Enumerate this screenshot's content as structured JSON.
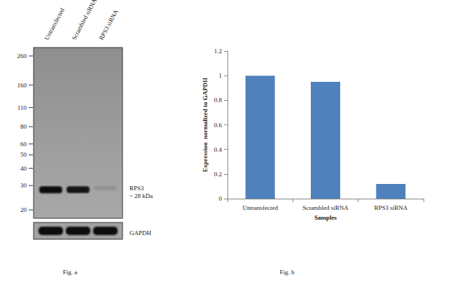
{
  "figure_a": {
    "caption": "Fig. a",
    "lanes": [
      "Untransfected",
      "Scrambled siRNA",
      "RPS3 siRNA"
    ],
    "markers": [
      260,
      160,
      110,
      80,
      60,
      50,
      40,
      30,
      20
    ],
    "bands": [
      {
        "name": "RPS3",
        "size_label": "~ 28 kDa",
        "kda": 28
      }
    ],
    "loading_control": "GAPDH"
  },
  "figure_b": {
    "caption": "Fig. b"
  },
  "chart_data": {
    "type": "bar",
    "categories": [
      "Untransfected",
      "Scrambled siRNA",
      "RPS3 siRNA"
    ],
    "values": [
      1,
      0.95,
      0.12
    ],
    "color": "#4f81bd",
    "x_label": "Samples",
    "y_label": "Expression  normalized to GAPDH",
    "ylim": [
      0,
      1.2
    ],
    "yticks": [
      0,
      0.2,
      0.4,
      0.6,
      0.8,
      1,
      1.2
    ],
    "grid": false
  }
}
